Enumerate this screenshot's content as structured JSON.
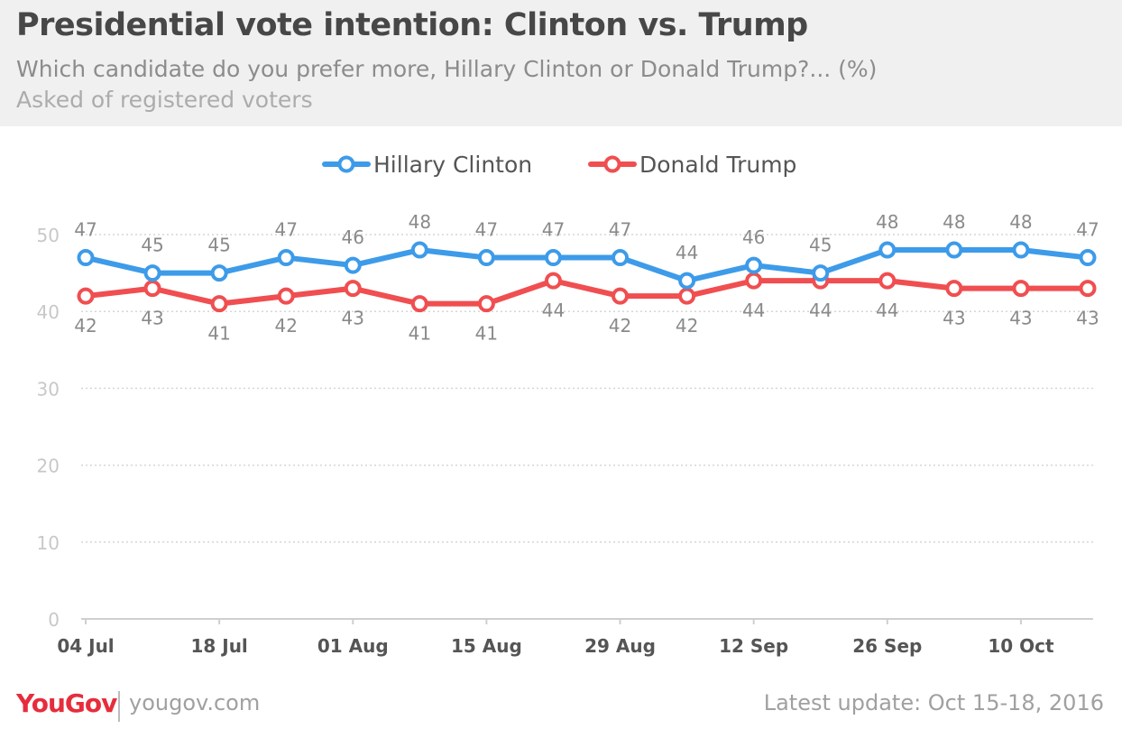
{
  "title": "Presidential vote intention: Clinton vs. Trump",
  "subtitle": "Which candidate do you prefer more, Hillary Clinton or Donald Trump?... (%)",
  "note": "Asked of registered voters",
  "footer": {
    "logo": "YouGov",
    "site": "yougov.com",
    "update": "Latest update: Oct 15-18, 2016"
  },
  "chart_data": {
    "type": "line",
    "x": [
      "2016-07-04",
      "2016-07-11",
      "2016-07-18",
      "2016-07-25",
      "2016-08-01",
      "2016-08-08",
      "2016-08-15",
      "2016-08-22",
      "2016-08-29",
      "2016-09-05",
      "2016-09-12",
      "2016-09-19",
      "2016-09-26",
      "2016-10-03",
      "2016-10-10",
      "2016-10-17"
    ],
    "x_ticks": [
      "04 Jul",
      "18 Jul",
      "01 Aug",
      "15 Aug",
      "29 Aug",
      "12 Sep",
      "26 Sep",
      "10 Oct"
    ],
    "y_ticks": [
      0,
      10,
      20,
      30,
      40,
      50
    ],
    "ylim": [
      0,
      50
    ],
    "grid": true,
    "legend_position": "top-center",
    "series": [
      {
        "name": "Hillary Clinton",
        "color": "#3d9be9",
        "x": [
          "2016-07-04",
          "2016-07-11",
          "2016-07-18",
          "2016-07-25",
          "2016-08-01",
          "2016-08-08",
          "2016-08-15",
          "2016-08-22",
          "2016-08-29",
          "2016-09-05",
          "2016-09-12",
          "2016-09-19",
          "2016-09-26",
          "2016-10-03",
          "2016-10-10",
          "2016-10-17"
        ],
        "values": [
          47,
          45,
          45,
          47,
          46,
          48,
          47,
          47,
          47,
          44,
          46,
          45,
          48,
          48,
          48,
          47
        ],
        "labels_position": "above"
      },
      {
        "name": "Donald Trump",
        "color": "#f04e50",
        "x": [
          "2016-07-04",
          "2016-07-11",
          "2016-07-18",
          "2016-07-25",
          "2016-08-01",
          "2016-08-08",
          "2016-08-15",
          "2016-08-22",
          "2016-08-29",
          "2016-09-05",
          "2016-09-12",
          "2016-09-19",
          "2016-09-26",
          "2016-10-03",
          "2016-10-10",
          "2016-10-17"
        ],
        "values": [
          42,
          43,
          41,
          42,
          43,
          41,
          41,
          44,
          42,
          42,
          44,
          44,
          44,
          43,
          43,
          43
        ],
        "labels_position": "below"
      }
    ]
  }
}
